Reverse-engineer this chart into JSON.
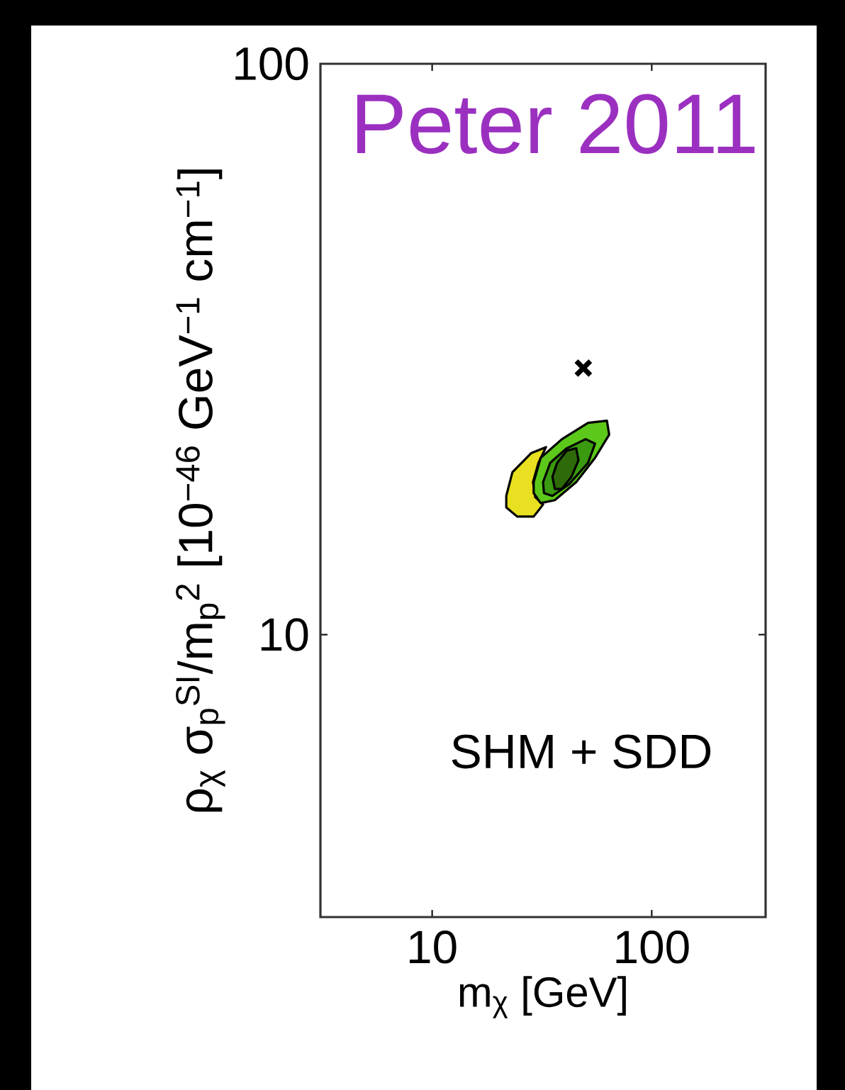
{
  "chart_data": {
    "type": "area",
    "title": "Peter 2011",
    "xlabel": "m$_{χ}$ [GeV]",
    "ylabel": "ρ$_{χ}$ σ$_{p}$$^{SI}$/m$_{p}$$^{2}$ [10$^{−46}$ GeV$^{−1}$ cm$^{−1}$]",
    "annotations": [
      "SHM + SDD"
    ],
    "log": "xy",
    "grid": false,
    "xlim": [
      3.1,
      330
    ],
    "ylim": [
      3.2,
      100
    ],
    "xticks": [
      10,
      100
    ],
    "yticks": [
      10,
      100
    ],
    "series": [
      {
        "color": "#e8e020",
        "x": [
          21.76,
          23.2,
          28.3,
          33.0,
          30.5,
          28.8,
          29.5,
          32.0,
          29.0,
          24.4,
          21.76,
          21.76
        ],
        "values": [
          17.5,
          19.25,
          20.8,
          21.3,
          20.0,
          18.5,
          17.4,
          16.9,
          16.1,
          16.1,
          16.7,
          17.5
        ]
      },
      {
        "color": "#5cc81a",
        "x": [
          29.0,
          31.2,
          39.0,
          51.3,
          62.5,
          64.0,
          55.2,
          45.3,
          36.2,
          31.2,
          29.0,
          29.0
        ],
        "values": [
          18.5,
          20.4,
          22.0,
          23.5,
          23.7,
          22.4,
          20.4,
          18.5,
          17.2,
          17.0,
          17.7,
          18.5
        ]
      },
      {
        "color": "#3a9a10",
        "x": [
          32.0,
          34.5,
          41.0,
          50.0,
          55.2,
          51.3,
          42.1,
          35.3,
          32.3,
          32.0
        ],
        "values": [
          18.5,
          20.0,
          21.2,
          22.0,
          21.6,
          20.0,
          18.35,
          17.5,
          17.7,
          18.5
        ]
      },
      {
        "color": "#2e6a08",
        "x": [
          35.3,
          37.1,
          41.0,
          45.3,
          46.4,
          43.1,
          39.0,
          36.2,
          35.3
        ],
        "values": [
          18.9,
          20.0,
          21.0,
          21.2,
          20.2,
          18.9,
          18.0,
          18.0,
          18.9
        ]
      },
      {
        "type": "scatter",
        "color": "#000000",
        "marker": "cross",
        "x": [
          48.8
        ],
        "values": [
          29.3
        ]
      }
    ]
  }
}
